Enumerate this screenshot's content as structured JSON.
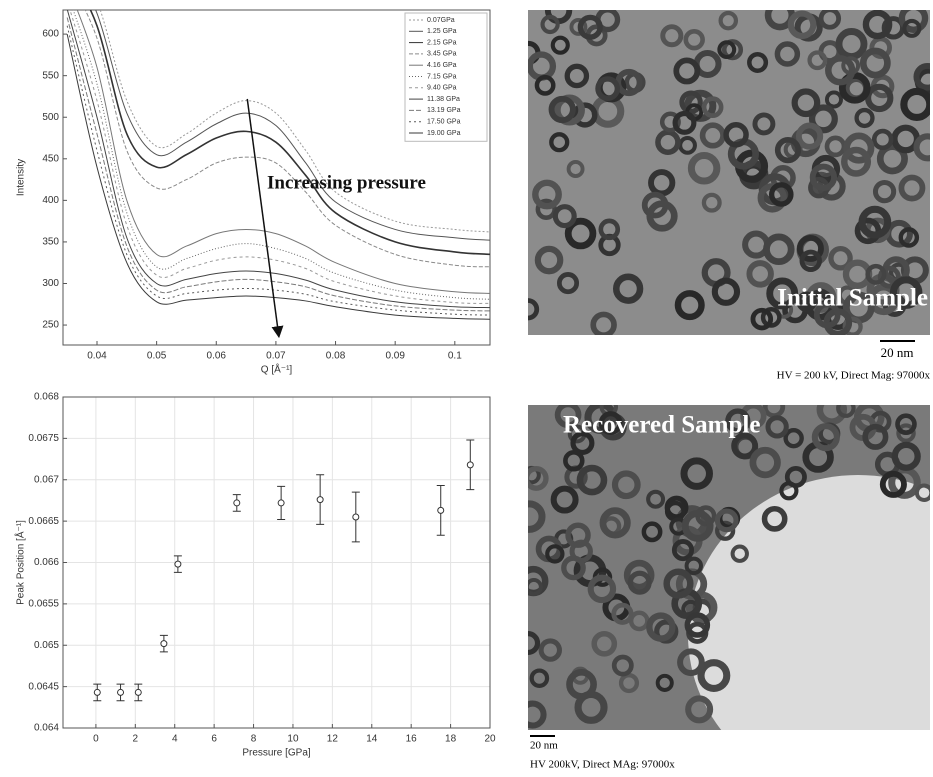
{
  "chart_data": [
    {
      "type": "line",
      "x_label": "Q [Å⁻¹]",
      "y_label": "Intensity",
      "annotation": "Increasing pressure",
      "x": [
        0.035,
        0.04,
        0.045,
        0.05,
        0.055,
        0.06,
        0.065,
        0.07,
        0.075,
        0.08,
        0.09,
        0.1,
        0.106
      ],
      "xlim": [
        0.0343,
        0.1059
      ],
      "xticks": [
        0.04,
        0.05,
        0.06,
        0.07,
        0.08,
        0.09,
        0.1
      ],
      "ylim": [
        226,
        629
      ],
      "yticks": [
        250,
        300,
        350,
        400,
        450,
        500,
        550,
        600
      ],
      "legend": "upper right",
      "series": [
        {
          "name": "0.07GPa",
          "color": "#9a9a9a",
          "values": [
            700,
            640,
            520,
            465,
            480,
            505,
            520,
            505,
            460,
            410,
            375,
            365,
            362
          ]
        },
        {
          "name": "1.25 GPa",
          "color": "#555555",
          "values": [
            690,
            625,
            505,
            455,
            470,
            492,
            505,
            490,
            445,
            398,
            365,
            355,
            352
          ]
        },
        {
          "name": "2.15 GPa",
          "color": "#333333",
          "values": [
            680,
            610,
            480,
            440,
            455,
            475,
            483,
            470,
            430,
            385,
            350,
            338,
            335
          ]
        },
        {
          "name": "3.45 GPa",
          "color": "#8a8a8a",
          "values": [
            670,
            595,
            460,
            415,
            425,
            445,
            452,
            445,
            410,
            370,
            335,
            322,
            320
          ]
        },
        {
          "name": "4.16 GPa",
          "color": "#777777",
          "values": [
            660,
            560,
            400,
            335,
            345,
            360,
            365,
            360,
            345,
            325,
            300,
            290,
            288
          ]
        },
        {
          "name": "7.15 GPa",
          "color": "#666666",
          "values": [
            650,
            540,
            385,
            320,
            330,
            342,
            348,
            342,
            330,
            312,
            292,
            283,
            281
          ]
        },
        {
          "name": "9.40 GPa",
          "color": "#999999",
          "values": [
            640,
            520,
            370,
            310,
            318,
            328,
            332,
            328,
            318,
            302,
            285,
            277,
            276
          ]
        },
        {
          "name": "11.38 GPa",
          "color": "#444444",
          "values": [
            630,
            500,
            355,
            300,
            305,
            312,
            315,
            312,
            304,
            292,
            278,
            272,
            271
          ]
        },
        {
          "name": "13.19 GPa",
          "color": "#7a7a7a",
          "values": [
            620,
            480,
            345,
            292,
            296,
            302,
            305,
            302,
            296,
            285,
            273,
            268,
            267
          ]
        },
        {
          "name": "17.50 GPa",
          "color": "#5a5a5a",
          "values": [
            610,
            460,
            335,
            285,
            288,
            292,
            294,
            292,
            287,
            278,
            268,
            263,
            262
          ]
        },
        {
          "name": "19.00 GPa",
          "color": "#3a3a3a",
          "values": [
            600,
            440,
            325,
            278,
            280,
            283,
            285,
            283,
            279,
            272,
            262,
            258,
            257
          ]
        }
      ]
    },
    {
      "type": "scatter",
      "x_label": "Pressure [GPa]",
      "y_label": "Peak Position [Å⁻¹]",
      "x": [
        0.07,
        1.25,
        2.15,
        3.45,
        4.16,
        7.15,
        9.4,
        11.38,
        13.19,
        17.5,
        19.0
      ],
      "xlim": [
        -1.67,
        20
      ],
      "xticks": [
        0,
        2,
        4,
        6,
        8,
        10,
        12,
        14,
        16,
        18,
        20
      ],
      "ylim": [
        0.064,
        0.068
      ],
      "yticks": [
        0.064,
        0.0645,
        0.065,
        0.0655,
        0.066,
        0.0665,
        0.067,
        0.0675,
        0.068
      ],
      "grid": true,
      "series": [
        {
          "name": null,
          "color": "#333333",
          "values": [
            0.06443,
            0.06443,
            0.06443,
            0.06502,
            0.06598,
            0.06672,
            0.06672,
            0.06676,
            0.06655,
            0.06663,
            0.06718
          ],
          "errors": [
            0.0001,
            0.0001,
            0.0001,
            0.0001,
            0.0001,
            0.0001,
            0.0002,
            0.0003,
            0.0003,
            0.0003,
            0.0003
          ]
        }
      ]
    }
  ],
  "images": [
    {
      "label": "Initial Sample",
      "scale_bar": "20 nm",
      "caption": "HV = 200 kV, Direct Mag: 97000x"
    },
    {
      "label": "Recovered Sample",
      "scale_bar": "20 nm",
      "caption": "HV  200kV,  Direct MAg: 97000x"
    }
  ]
}
